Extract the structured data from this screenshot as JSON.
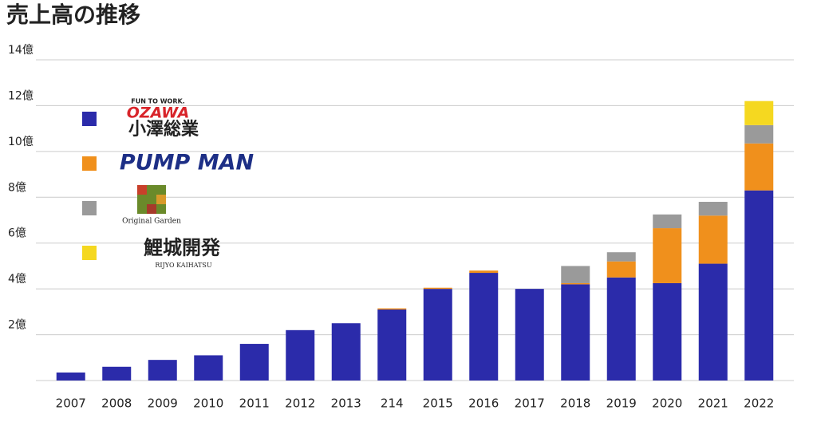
{
  "chart_data": {
    "type": "bar",
    "stacked": true,
    "title": "売上高の推移",
    "categories": [
      "2007",
      "2008",
      "2009",
      "2010",
      "2011",
      "2012",
      "2013",
      "214",
      "2015",
      "2016",
      "2017",
      "2018",
      "2019",
      "2020",
      "2021",
      "2022"
    ],
    "series": [
      {
        "name": "小澤総業",
        "logo_lines": [
          "FUN TO WORK.",
          "OZAWA"
        ],
        "color": "#2b2baa",
        "values": [
          0.35,
          0.6,
          0.9,
          1.1,
          1.6,
          2.2,
          2.5,
          3.1,
          4.0,
          4.7,
          4.0,
          4.2,
          4.5,
          4.25,
          5.1,
          8.3
        ]
      },
      {
        "name": "PUMP MAN",
        "color": "#f0901c",
        "values": [
          null,
          null,
          null,
          null,
          null,
          null,
          null,
          0.05,
          0.05,
          0.1,
          null,
          0.05,
          0.7,
          2.4,
          2.1,
          2.05
        ]
      },
      {
        "name": "Original Garden",
        "color": "#9a9a9a",
        "values": [
          null,
          null,
          null,
          null,
          null,
          null,
          null,
          null,
          null,
          null,
          null,
          0.75,
          0.4,
          0.6,
          0.6,
          0.8
        ]
      },
      {
        "name": "鯉城開発",
        "logo_lines": [
          "RIJYO KAIHATSU"
        ],
        "color": "#f5d820",
        "values": [
          null,
          null,
          null,
          null,
          null,
          null,
          null,
          null,
          null,
          null,
          null,
          null,
          null,
          null,
          null,
          1.05
        ]
      }
    ],
    "ylim": [
      0,
      14
    ],
    "yticks": [
      {
        "value": 2,
        "label": "2億"
      },
      {
        "value": 4,
        "label": "4億"
      },
      {
        "value": 6,
        "label": "6億"
      },
      {
        "value": 8,
        "label": "8億"
      },
      {
        "value": 10,
        "label": "10億"
      },
      {
        "value": 12,
        "label": "12億"
      },
      {
        "value": 14,
        "label": "14億"
      }
    ],
    "grid": true
  }
}
